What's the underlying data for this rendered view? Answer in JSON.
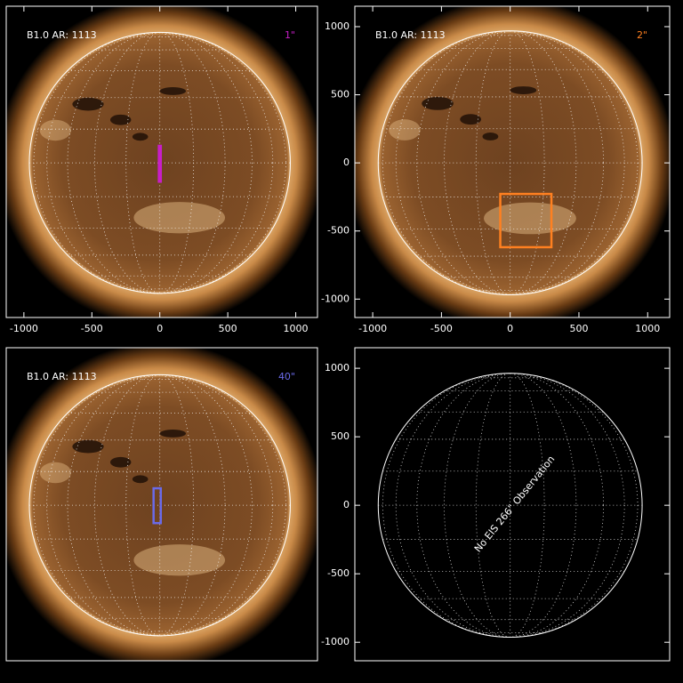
{
  "chart_data": [
    {
      "type": "image",
      "title": "B1.0 AR: 1113",
      "label": "1\"",
      "color": "#c81ec8",
      "xlim": [
        -1130,
        1160
      ],
      "ylim": [
        -1135,
        1150
      ],
      "xticks": [
        -1000,
        -500,
        0,
        500,
        1000
      ],
      "box_x": [
        -12,
        12
      ],
      "box_y": [
        130,
        -143
      ],
      "box_filled": true
    },
    {
      "type": "image",
      "title": "B1.0 AR: 1113",
      "label": "2\"",
      "color": "#ff8020",
      "xlim": [
        -1130,
        1160
      ],
      "ylim": [
        -1135,
        1150
      ],
      "xticks": [
        -1000,
        -500,
        0,
        500,
        1000
      ],
      "yticks": [
        -1000,
        -500,
        0,
        500,
        1000
      ],
      "box_x": [
        -72,
        300
      ],
      "box_y": [
        -228,
        -619
      ],
      "box_filled": false
    },
    {
      "type": "image",
      "title": "B1.0 AR: 1113",
      "label": "40\"",
      "color": "#6a6ae8",
      "xlim": [
        -1130,
        1160
      ],
      "ylim": [
        -1135,
        1150
      ],
      "box_x": [
        -46,
        7
      ],
      "box_y": [
        124,
        -130
      ],
      "box_filled": false
    },
    {
      "type": "empty",
      "annotation": "No EIS 266\" Observation",
      "xlim": [
        -1130,
        1160
      ],
      "ylim": [
        -1135,
        1150
      ],
      "yticks": [
        -1000,
        -500,
        0,
        500,
        1000
      ]
    }
  ]
}
